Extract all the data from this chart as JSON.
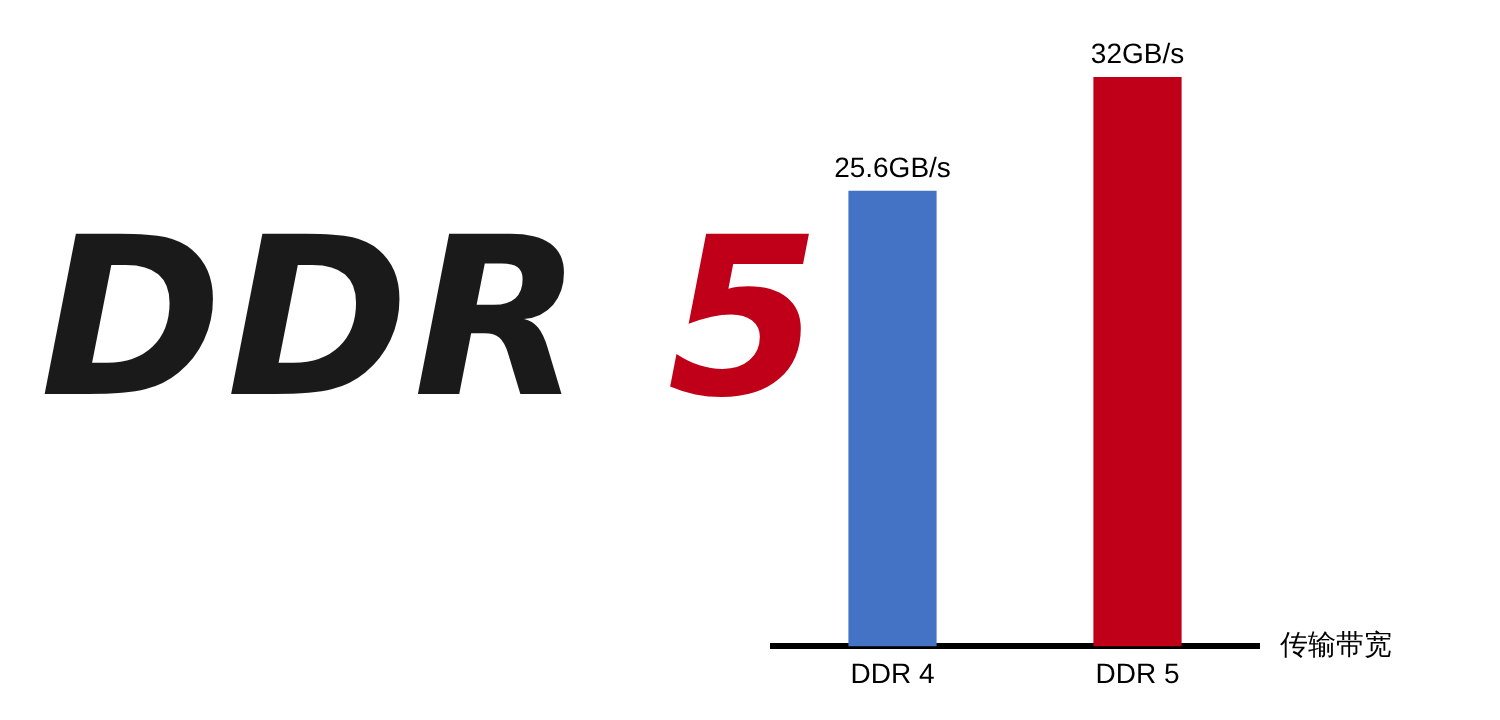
{
  "chart_data": {
    "type": "bar",
    "title": "DDR 5",
    "xlabel": "传输带宽",
    "categories": [
      "DDR 4",
      "DDR 5"
    ],
    "values": [
      25.6,
      32
    ],
    "colors": [
      "#4472c4",
      "#c00018"
    ],
    "value_labels": [
      "25.6GB/s",
      "32GB/s"
    ],
    "grid": false,
    "legend": false
  }
}
